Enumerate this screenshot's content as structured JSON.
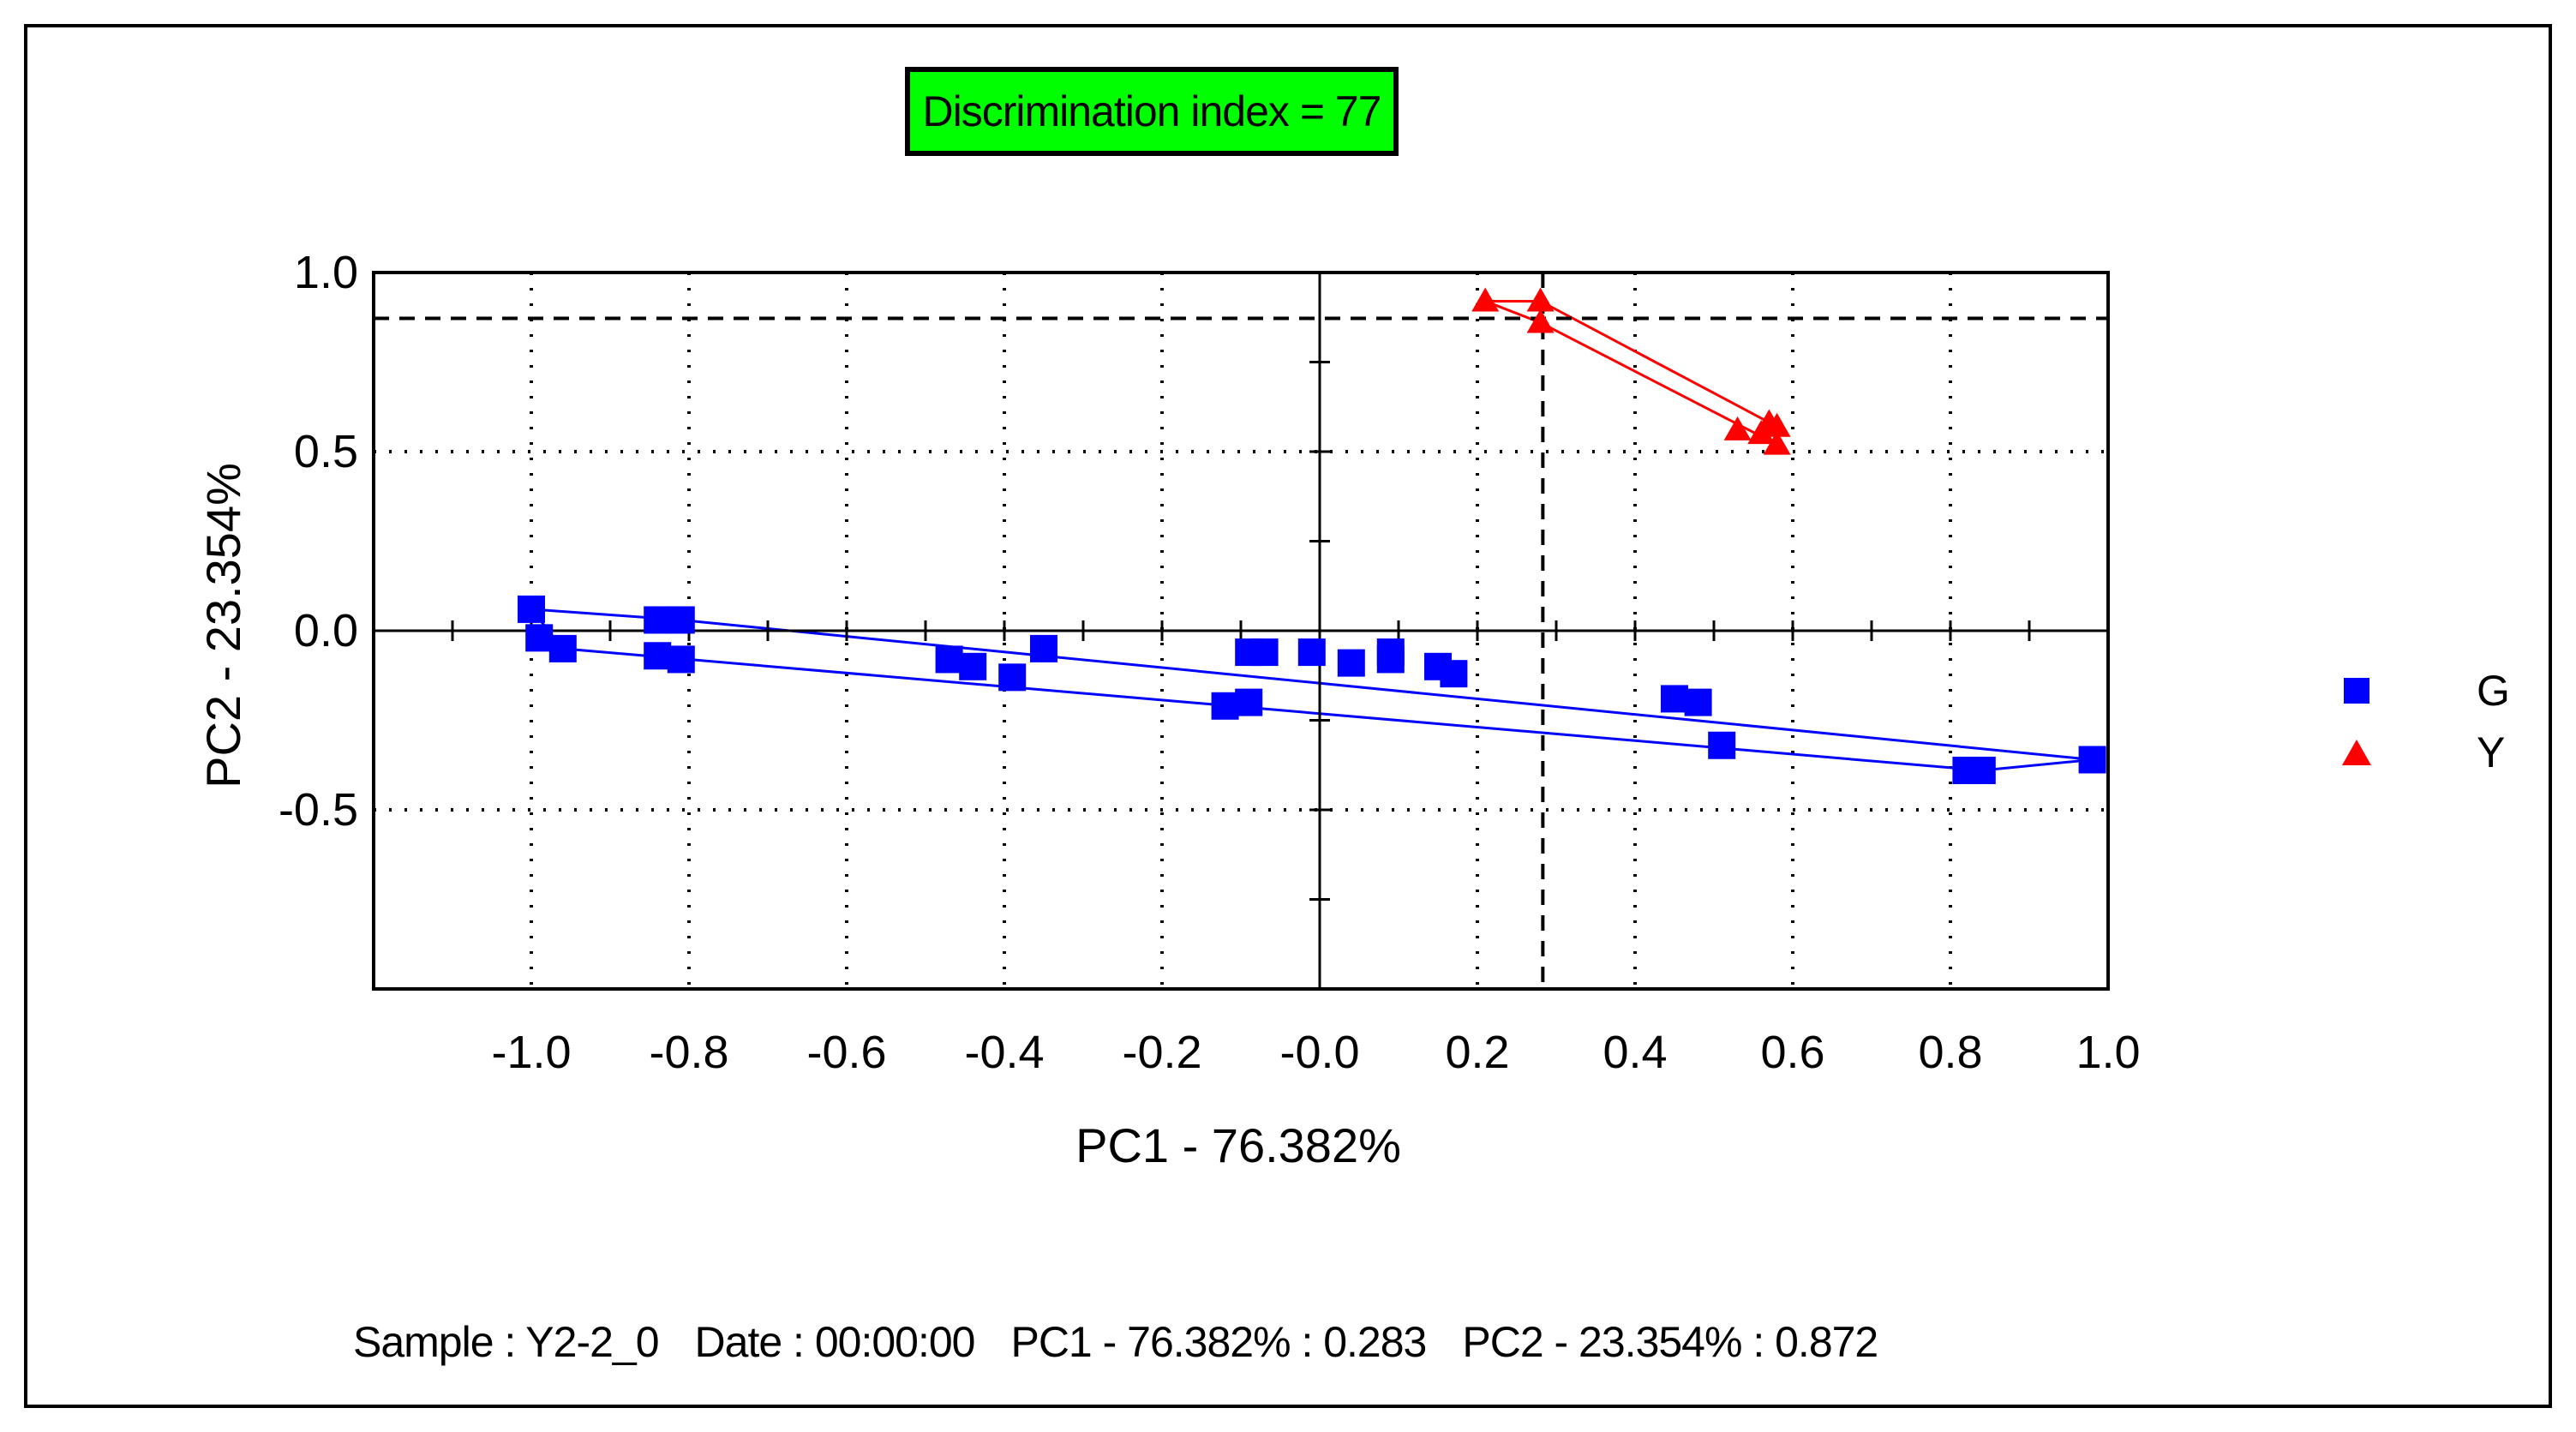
{
  "badge": {
    "text": "Discrimination index = 77",
    "background": "#00ff00"
  },
  "chart_data": {
    "type": "scatter",
    "xlabel": "PC1 - 76.382%",
    "ylabel": "PC2 - 23.354%",
    "xlim": [
      -1.2,
      1.0
    ],
    "ylim": [
      -1.0,
      1.0
    ],
    "x_ticks": [
      "-1.0",
      "-0.8",
      "-0.6",
      "-0.4",
      "-0.2",
      "-0.0",
      "0.2",
      "0.4",
      "0.6",
      "0.8",
      "1.0"
    ],
    "x_tick_values": [
      -1.0,
      -0.8,
      -0.6,
      -0.4,
      -0.2,
      0.0,
      0.2,
      0.4,
      0.6,
      0.8,
      1.0
    ],
    "y_ticks": [
      "1.0",
      "0.5",
      "0.0",
      "-0.5"
    ],
    "y_tick_values": [
      1.0,
      0.5,
      0.0,
      -0.5
    ],
    "crosshair": {
      "x": 0.283,
      "y": 0.872
    },
    "series": [
      {
        "name": "G",
        "color": "#0000ff",
        "marker": "square",
        "points": [
          [
            -1.0,
            0.06
          ],
          [
            -0.99,
            -0.02
          ],
          [
            -0.96,
            -0.05
          ],
          [
            -0.84,
            0.03
          ],
          [
            -0.81,
            0.03
          ],
          [
            -0.84,
            -0.07
          ],
          [
            -0.81,
            -0.08
          ],
          [
            -0.47,
            -0.08
          ],
          [
            -0.44,
            -0.1
          ],
          [
            -0.39,
            -0.13
          ],
          [
            -0.35,
            -0.05
          ],
          [
            -0.12,
            -0.21
          ],
          [
            -0.09,
            -0.2
          ],
          [
            -0.09,
            -0.06
          ],
          [
            -0.07,
            -0.06
          ],
          [
            -0.01,
            -0.06
          ],
          [
            0.04,
            -0.09
          ],
          [
            0.09,
            -0.08
          ],
          [
            0.09,
            -0.06
          ],
          [
            0.15,
            -0.1
          ],
          [
            0.17,
            -0.12
          ],
          [
            0.45,
            -0.19
          ],
          [
            0.48,
            -0.2
          ],
          [
            0.51,
            -0.32
          ],
          [
            0.82,
            -0.39
          ],
          [
            0.84,
            -0.39
          ],
          [
            0.98,
            -0.36
          ]
        ],
        "hull": [
          [
            -1.0,
            0.06
          ],
          [
            -0.81,
            0.03
          ],
          [
            0.98,
            -0.36
          ],
          [
            0.84,
            -0.39
          ],
          [
            -0.96,
            -0.05
          ],
          [
            -1.0,
            0.06
          ]
        ]
      },
      {
        "name": "Y",
        "color": "#ff0000",
        "marker": "triangle",
        "points": [
          [
            0.21,
            0.92
          ],
          [
            0.28,
            0.92
          ],
          [
            0.28,
            0.86
          ],
          [
            0.53,
            0.56
          ],
          [
            0.56,
            0.55
          ],
          [
            0.57,
            0.58
          ],
          [
            0.58,
            0.57
          ],
          [
            0.58,
            0.52
          ]
        ],
        "hull": [
          [
            0.21,
            0.92
          ],
          [
            0.28,
            0.92
          ],
          [
            0.58,
            0.57
          ],
          [
            0.58,
            0.52
          ],
          [
            0.28,
            0.86
          ],
          [
            0.21,
            0.92
          ]
        ]
      }
    ]
  },
  "legend": [
    {
      "label": "G",
      "marker": "square",
      "color": "#0000ff"
    },
    {
      "label": "Y",
      "marker": "triangle",
      "color": "#ff0000"
    }
  ],
  "status": {
    "sample": "Sample : Y2-2_0",
    "date": "Date : 00:00:00",
    "pc1": "PC1 - 76.382% : 0.283",
    "pc2": "PC2 - 23.354% : 0.872"
  }
}
